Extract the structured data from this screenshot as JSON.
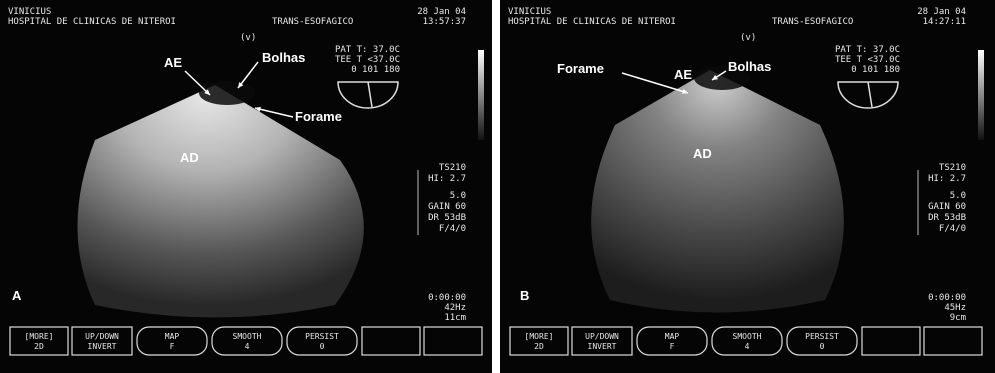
{
  "panels": [
    {
      "header": {
        "name": "VINICIUS",
        "hospital": "HOSPITAL DE CLINICAS DE NITEROI",
        "mode": "TRANS-ESOFAGICO",
        "date": "28 Jan 04",
        "time": "13:57:37",
        "marker": "(v)"
      },
      "temps": [
        "PAT T: 37.0C",
        "TEE T <37.0C",
        "0 101 180"
      ],
      "labels": {
        "ae": "AE",
        "bolhas": "Bolhas",
        "forame": "Forame",
        "ad": "AD",
        "panel": "A"
      },
      "settings": [
        "TS210",
        "HI: 2.7",
        "5.0",
        "GAIN 60",
        "DR 53dB",
        "F/4/0"
      ],
      "footer": [
        "0:00:00",
        "42Hz",
        "11cm"
      ],
      "buttons": [
        [
          "[MORE]",
          "2D"
        ],
        [
          "UP/DOWN",
          "INVERT"
        ],
        [
          "MAP",
          "F"
        ],
        [
          "SMOOTH",
          "4"
        ],
        [
          "PERSIST",
          "0"
        ]
      ]
    },
    {
      "header": {
        "name": "VINICIUS",
        "hospital": "HOSPITAL DE CLINICAS DE NITEROI",
        "mode": "TRANS-ESOFAGICO",
        "date": "28 Jan 04",
        "time": "14:27:11",
        "marker": "(v)"
      },
      "temps": [
        "PAT T: 37.0C",
        "TEE T <37.0C",
        "0 101 180"
      ],
      "labels": {
        "ae": "AE",
        "bolhas": "Bolhas",
        "forame": "Forame",
        "ad": "AD",
        "panel": "B"
      },
      "settings": [
        "TS210",
        "HI: 2.7",
        "5.0",
        "GAIN 60",
        "DR 53dB",
        "F/4/0"
      ],
      "footer": [
        "0:00:00",
        "45Hz",
        "9cm"
      ],
      "buttons": [
        [
          "[MORE]",
          "2D"
        ],
        [
          "UP/DOWN",
          "INVERT"
        ],
        [
          "MAP",
          "F"
        ],
        [
          "SMOOTH",
          "4"
        ],
        [
          "PERSIST",
          "0"
        ]
      ]
    }
  ]
}
